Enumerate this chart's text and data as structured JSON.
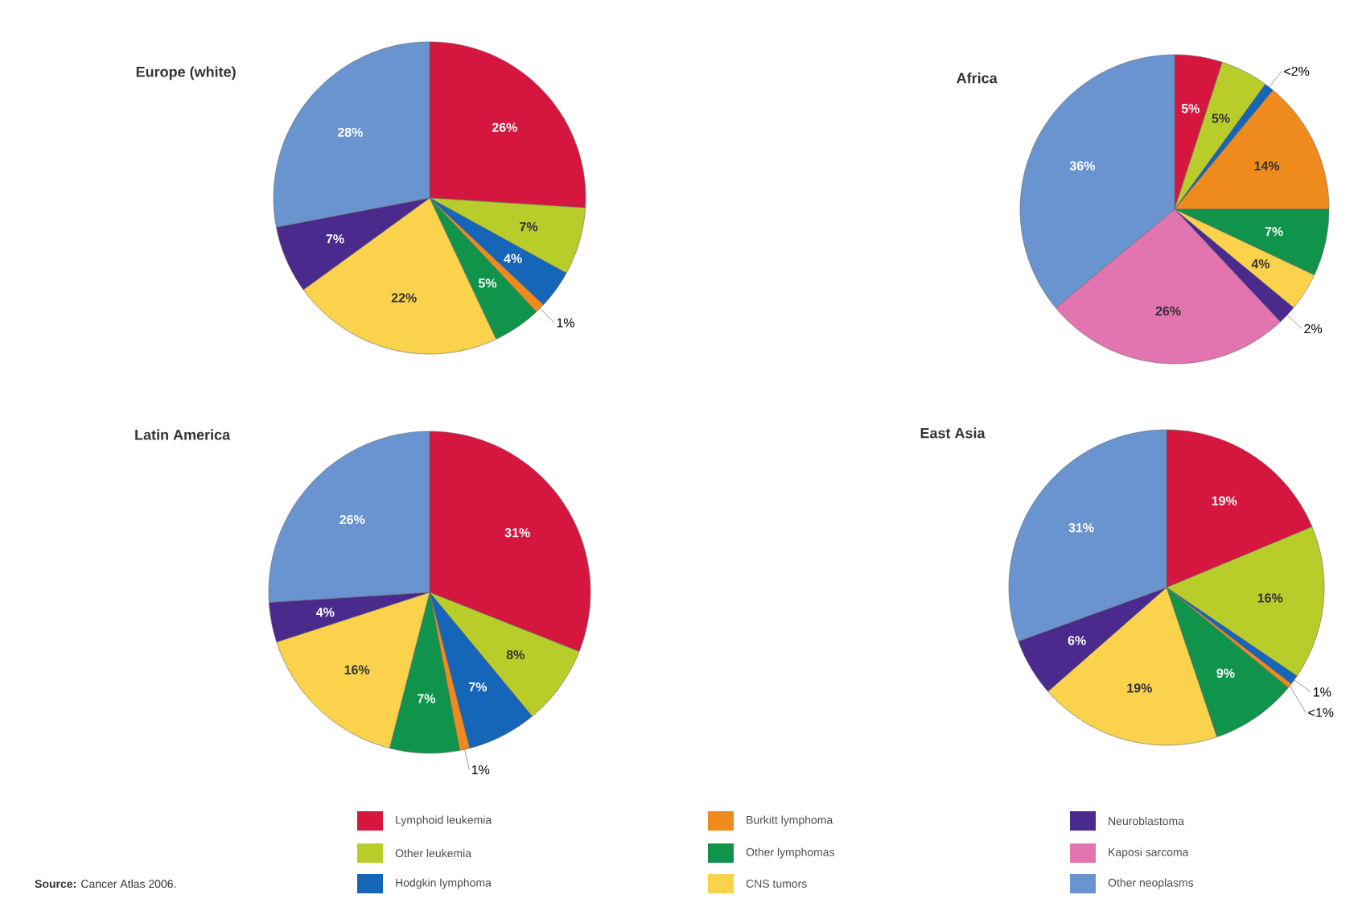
{
  "chart_data": [
    {
      "type": "pie",
      "title": "Europe (white)",
      "legend": "bottom",
      "annotations": [
        "**Source:** Cancer Atlas 2006."
      ],
      "categories": [
        "Lymphoid leukemia",
        "Other leukemia",
        "Hodgkin lymphoma",
        "Burkitt lymphoma",
        "Other lymphomas",
        "CNS tumors",
        "Neuroblastoma",
        "Kaposi sarcoma",
        "Other neoplasms"
      ],
      "values": [
        26,
        7,
        4,
        1,
        5,
        22,
        7,
        0,
        28
      ],
      "value_labels": [
        "26%",
        "7%",
        "4%",
        "1%",
        "5%",
        "22%",
        "7%",
        null,
        "28%"
      ],
      "colors": [
        "#d5173f",
        "#b9cd2a",
        "#1565b8",
        "#ef8a1d",
        "#10944b",
        "#fbd24c",
        "#4a2a8c",
        "#e274b0",
        "#6a94cf"
      ]
    },
    {
      "type": "pie",
      "title": "Africa",
      "categories": [
        null,
        null,
        null,
        null,
        null,
        null,
        null,
        null,
        null
      ],
      "values": [
        5,
        5,
        1,
        14,
        7,
        4,
        2,
        26,
        36
      ],
      "value_labels": [
        "5%",
        "5%",
        "<2%",
        "14%",
        "7%",
        "4%",
        "2%",
        "26%",
        "36%"
      ],
      "colors": [
        "#d5173f",
        "#b9cd2a",
        "#1565b8",
        "#ef8a1d",
        "#10944b",
        "#fbd24c",
        "#4a2a8c",
        "#e274b0",
        "#6a94cf"
      ]
    },
    {
      "type": "pie",
      "title": "Latin America",
      "categories": [
        null,
        null,
        null,
        null,
        null,
        null,
        null,
        null,
        null
      ],
      "values": [
        31,
        8,
        7,
        1,
        7,
        16,
        4,
        0,
        26
      ],
      "value_labels": [
        "31%",
        "8%",
        "7%",
        "1%",
        "7%",
        "16%",
        "4%",
        null,
        "26%"
      ],
      "colors": [
        "#d5173f",
        "#b9cd2a",
        "#1565b8",
        "#ef8a1d",
        "#10944b",
        "#fbd24c",
        "#4a2a8c",
        "#e274b0",
        "#6a94cf"
      ]
    },
    {
      "type": "pie",
      "title": "East Asia",
      "categories": [
        null,
        null,
        null,
        null,
        null,
        null,
        null,
        null,
        null
      ],
      "values": [
        19,
        16,
        1,
        0.5,
        9,
        19,
        6,
        0,
        31
      ],
      "value_labels": [
        "19%",
        "16%",
        "1%",
        "<1%",
        "9%",
        "19%",
        "6%",
        null,
        "31%"
      ],
      "colors": [
        "#d5173f",
        "#b9cd2a",
        "#1565b8",
        "#ef8a1d",
        "#10944b",
        "#fbd24c",
        "#4a2a8c",
        "#e274b0",
        "#6a94cf"
      ]
    }
  ]
}
